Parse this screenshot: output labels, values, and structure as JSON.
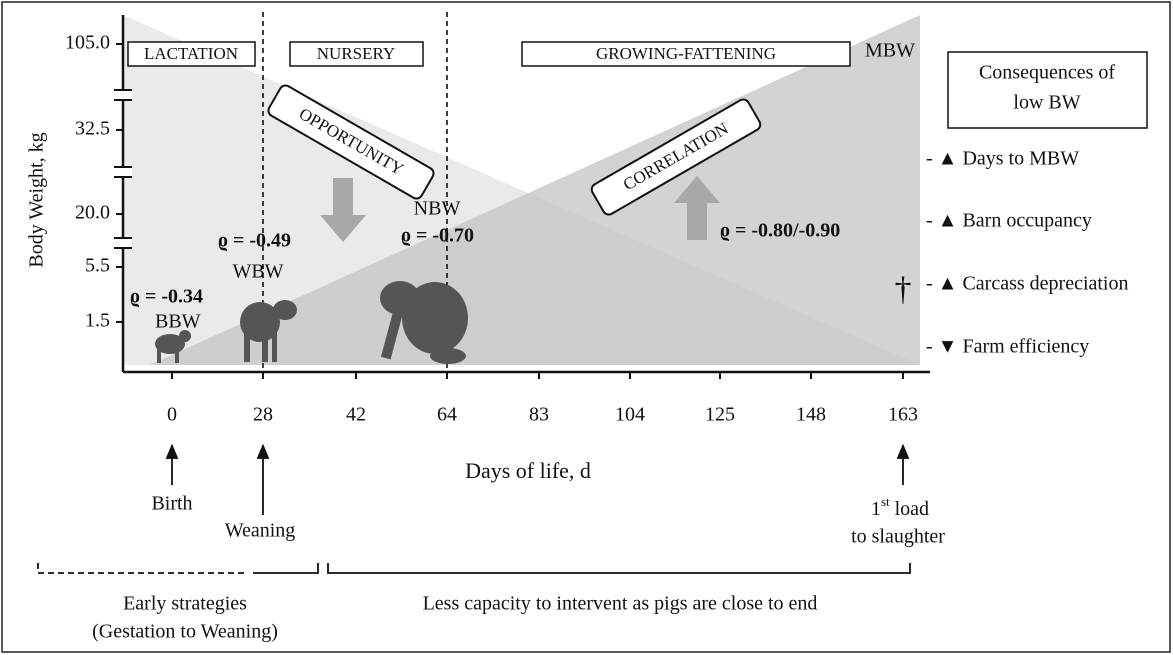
{
  "y_axis": {
    "title": "Body Weight, kg",
    "ticks": [
      "105.0",
      "32.5",
      "20.0",
      "5.5",
      "1.5"
    ]
  },
  "x_axis": {
    "title": "Days of life, d",
    "ticks": [
      "0",
      "28",
      "42",
      "64",
      "83",
      "104",
      "125",
      "148",
      "163"
    ]
  },
  "phases": [
    "LACTATION",
    "NURSERY",
    "GROWING-FATTENING"
  ],
  "mbw": "MBW",
  "consequences": {
    "title": [
      "Consequences of",
      "low BW"
    ],
    "items": [
      "- ▲ Days to MBW",
      "- ▲ Barn occupancy",
      "- ▲ Carcass depreciation",
      "- ▼ Farm efficiency"
    ]
  },
  "opportunity": "OPPORTUNITY",
  "correlation": "CORRELATION",
  "points": [
    {
      "rho": "ϱ = -0.34",
      "label": "BBW"
    },
    {
      "rho": "ϱ = -0.49",
      "label": "WBW"
    },
    {
      "rho": "ϱ = -0.70",
      "label": "NBW"
    },
    {
      "rho": "ϱ = -0.80/-0.90"
    }
  ],
  "dagger": "†",
  "events": {
    "birth": "Birth",
    "weaning": "Weaning",
    "slaughter": {
      "line1": [
        "1",
        "st",
        " load"
      ],
      "line2": "to slaughter"
    }
  },
  "strategies": {
    "early": [
      "Early strategies",
      "(Gestation to Weaning)"
    ],
    "late": "Less capacity to intervent as pigs are close to end"
  }
}
